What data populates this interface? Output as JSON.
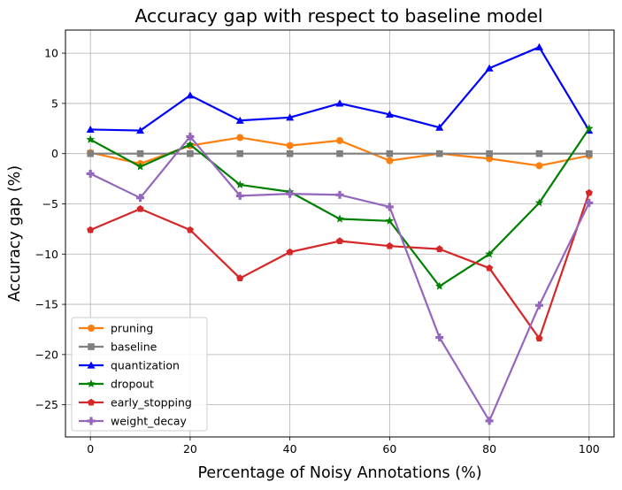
{
  "chart_data": {
    "type": "line",
    "title": "Accuracy gap with respect to baseline model",
    "xlabel": "Percentage of Noisy Annotations (%)",
    "ylabel": "Accuracy gap (%)",
    "xlim": [
      -5,
      105
    ],
    "ylim": [
      -28.2,
      12.3
    ],
    "xticks": [
      0,
      20,
      40,
      60,
      80,
      100
    ],
    "yticks": [
      -25,
      -20,
      -15,
      -10,
      -5,
      0,
      5,
      10
    ],
    "grid": true,
    "legend_position": "lower-left",
    "x": [
      0,
      10,
      20,
      30,
      40,
      50,
      60,
      70,
      80,
      90,
      100
    ],
    "series": [
      {
        "name": "pruning",
        "color": "#ff7f0e",
        "marker": "circle",
        "values": [
          0.1,
          -1.0,
          0.8,
          1.6,
          0.8,
          1.3,
          -0.7,
          0.0,
          -0.5,
          -1.2,
          -0.2
        ]
      },
      {
        "name": "baseline",
        "color": "#7f7f7f",
        "marker": "square",
        "values": [
          0,
          0,
          0,
          0,
          0,
          0,
          0,
          0,
          0,
          0,
          0
        ]
      },
      {
        "name": "quantization",
        "color": "#0000ff",
        "marker": "triangle",
        "values": [
          2.4,
          2.3,
          5.8,
          3.3,
          3.6,
          5.0,
          3.9,
          2.6,
          8.5,
          10.6,
          2.3
        ]
      },
      {
        "name": "dropout",
        "color": "#008000",
        "marker": "star",
        "values": [
          1.4,
          -1.3,
          0.9,
          -3.1,
          -3.8,
          -6.5,
          -6.7,
          -13.2,
          -10.0,
          -4.9,
          2.5
        ]
      },
      {
        "name": "early_stopping",
        "color": "#d62728",
        "marker": "pentagon",
        "values": [
          -7.6,
          -5.5,
          -7.6,
          -12.4,
          -9.8,
          -8.7,
          -9.2,
          -9.5,
          -11.4,
          -18.4,
          -3.9
        ]
      },
      {
        "name": "weight_decay",
        "color": "#9467bd",
        "marker": "plus",
        "values": [
          -2.0,
          -4.4,
          1.7,
          -4.2,
          -4.0,
          -4.1,
          -5.3,
          -18.3,
          -26.6,
          -15.1,
          -4.9
        ]
      }
    ]
  }
}
